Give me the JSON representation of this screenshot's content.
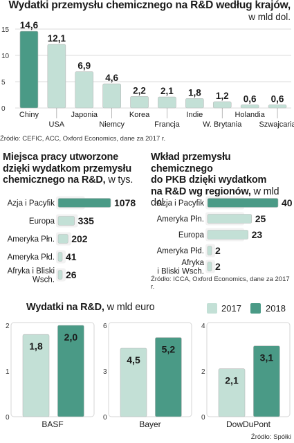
{
  "colors": {
    "light": "#c3e0d6",
    "dark": "#4a9a86",
    "grid": "#cfcfcf",
    "band": "#f2f2f2"
  },
  "chart1": {
    "title": "Wydatki przemysłu chemicznego na R&D według krajów,",
    "unit": "w mld dol.",
    "source": "Źródło: CEFIC, ACC, Oxford Economics, dane za 2017 r."
  },
  "chart2": {
    "title_line1": "Miejsca pracy utworzone",
    "title_line2": "dzięki wydatkom przemysłu",
    "title_line3": "chemicznego na R&D,",
    "unit": "w tys."
  },
  "chart3": {
    "title_line1": "Wkład przemysłu chemicznego",
    "title_line2": "do PKB dzięki wydatkom",
    "title_line3": "na R&D wg regionów,",
    "unit": "w mld dol.",
    "source": "Źródło: ICCA, Oxford Economics, dane za 2017 r."
  },
  "chart4": {
    "title": "Wydatki na R&D,",
    "unit": "w mld euro",
    "legend": [
      {
        "label": "2017"
      },
      {
        "label": "2018"
      }
    ],
    "source": "Źródło: Spółki"
  },
  "chart_data": [
    {
      "type": "bar",
      "categories": [
        "Chiny",
        "USA",
        "Japonia",
        "Niemcy",
        "Korea",
        "Francja",
        "Indie",
        "W. Brytania",
        "Holandia",
        "Szwajcaria"
      ],
      "values": [
        14.6,
        12.1,
        6.9,
        4.6,
        2.2,
        2.1,
        1.8,
        1.2,
        0.6,
        0.6
      ],
      "value_labels": [
        "14,6",
        "12,1",
        "6,9",
        "4,6",
        "2,2",
        "2,1",
        "1,8",
        "1,2",
        "0,6",
        "0,6"
      ],
      "yticks": [
        "0",
        "5",
        "10",
        "15"
      ],
      "ylim": [
        0,
        15
      ]
    },
    {
      "type": "bar",
      "orientation": "horizontal",
      "categories": [
        [
          "Azja i Pacyfik"
        ],
        [
          "Europa"
        ],
        [
          "Ameryka Płn."
        ],
        [
          "Ameryka Płd."
        ],
        [
          "Afryka i Bliski",
          "Wsch."
        ]
      ],
      "values": [
        1078,
        335,
        202,
        41,
        26
      ],
      "value_labels": [
        "1078",
        "335",
        "202",
        "41",
        "26"
      ]
    },
    {
      "type": "bar",
      "orientation": "horizontal",
      "categories": [
        [
          "Azja i Pacyfik"
        ],
        [
          "Ameryka Płn."
        ],
        [
          "Europa"
        ],
        [
          "Ameryka Płd."
        ],
        [
          "Afryka",
          "i Bliski Wsch."
        ]
      ],
      "values": [
        40,
        25,
        23,
        2,
        2
      ],
      "value_labels": [
        "40",
        "25",
        "23",
        "2",
        "2"
      ]
    },
    {
      "type": "bar",
      "title": "BASF",
      "categories": [
        "2017",
        "2018"
      ],
      "values": [
        1.8,
        2.0
      ],
      "value_labels": [
        "1,8",
        "2,0"
      ],
      "yticks": [
        "0",
        "1",
        "2"
      ],
      "ylim": [
        0,
        2
      ]
    },
    {
      "type": "bar",
      "title": "Bayer",
      "categories": [
        "2017",
        "2018"
      ],
      "values": [
        4.5,
        5.2
      ],
      "value_labels": [
        "4,5",
        "5,2"
      ],
      "yticks": [
        "0",
        "3",
        "6"
      ],
      "ylim": [
        0,
        6
      ]
    },
    {
      "type": "bar",
      "title": "DowDuPont",
      "categories": [
        "2017",
        "2018"
      ],
      "values": [
        2.1,
        3.1
      ],
      "value_labels": [
        "2,1",
        "3,1"
      ],
      "yticks": [
        "0",
        "2",
        "4"
      ],
      "ylim": [
        0,
        4
      ]
    }
  ]
}
